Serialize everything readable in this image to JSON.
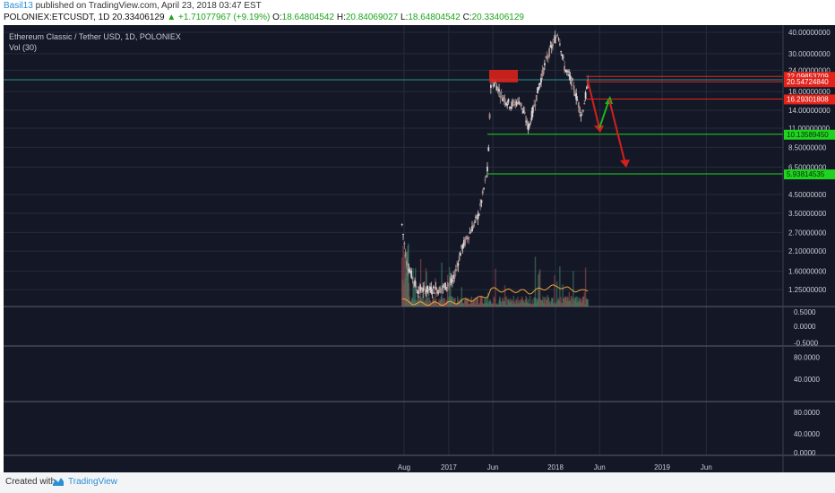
{
  "header": {
    "author": "Basil13",
    "published": " published on TradingView.com, April 23, 2018 03:47 EST",
    "symbol": "POLONIEX:ETCUSDT, 1D",
    "price": "20.33406129",
    "change": "▲ +1.71077967 (+9.19%)",
    "o_label": "O:",
    "o_value": "18.64804542",
    "h_label": "H:",
    "h_value": "20.84069027",
    "l_label": "L:",
    "l_value": "18.64804542",
    "c_label": "C:",
    "c_value": "20.33406129"
  },
  "chart_data": {
    "type": "candlestick",
    "title": "Ethereum Classic / Tether USD, 1D, POLONIEX",
    "indicator": "Vol (30)",
    "scale": "log",
    "price_axis_ticks": [
      "40.00000000",
      "30.00000000",
      "24.00000000",
      "18.00000000",
      "14.00000000",
      "11.00000000",
      "8.50000000",
      "6.50000000",
      "4.50000000",
      "3.50000000",
      "2.70000000",
      "2.10000000",
      "1.60000000",
      "1.25000000"
    ],
    "price_levels": [
      {
        "value": "22.09853709",
        "color": "#e3231b"
      },
      {
        "value": "20.54724840",
        "color": "#e3231b"
      },
      {
        "value": "16.29301808",
        "color": "#e3231b"
      },
      {
        "value": "10.13589450",
        "color": "#1fd41f"
      },
      {
        "value": "5.93814535",
        "color": "#1fd41f"
      }
    ],
    "x_axis_ticks": [
      "Aug",
      "2017",
      "Jun",
      "2018",
      "Jun",
      "2019",
      "Jun"
    ],
    "price_series": [
      {
        "date": "2016-07-25",
        "close": 3.0
      },
      {
        "date": "2016-08-10",
        "close": 1.8
      },
      {
        "date": "2016-09-15",
        "close": 1.25
      },
      {
        "date": "2016-12-01",
        "close": 1.25
      },
      {
        "date": "2017-01-15",
        "close": 1.4
      },
      {
        "date": "2017-02-15",
        "close": 2.2
      },
      {
        "date": "2017-03-15",
        "close": 2.7
      },
      {
        "date": "2017-04-15",
        "close": 3.5
      },
      {
        "date": "2017-05-15",
        "close": 6.5
      },
      {
        "date": "2017-05-25",
        "close": 20.0
      },
      {
        "date": "2017-06-10",
        "close": 20.0
      },
      {
        "date": "2017-07-01",
        "close": 17.0
      },
      {
        "date": "2017-08-01",
        "close": 15.0
      },
      {
        "date": "2017-09-01",
        "close": 16.0
      },
      {
        "date": "2017-10-01",
        "close": 11.0
      },
      {
        "date": "2017-11-01",
        "close": 18.0
      },
      {
        "date": "2017-12-01",
        "close": 28.0
      },
      {
        "date": "2018-01-10",
        "close": 40.0
      },
      {
        "date": "2018-02-01",
        "close": 25.0
      },
      {
        "date": "2018-03-01",
        "close": 20.0
      },
      {
        "date": "2018-04-01",
        "close": 13.0
      },
      {
        "date": "2018-04-23",
        "close": 20.33
      }
    ],
    "sub_panes": [
      {
        "name": "pane-1",
        "ticks": [
          "0.5000",
          "0.0000",
          "-0.5000"
        ]
      },
      {
        "name": "pane-2",
        "ticks": [
          "80.0000",
          "40.0000"
        ]
      },
      {
        "name": "pane-3",
        "ticks": [
          "80.0000",
          "40.0000",
          "0.0000"
        ]
      }
    ]
  },
  "footer": {
    "created": "Created with",
    "brand": "TradingView"
  },
  "colors": {
    "background": "#141826",
    "grid": "#262b3a",
    "resistance": "#e3231b",
    "support": "#1fd41f",
    "candles": "#b8a8a8",
    "volume_ma": "#f2a33a"
  }
}
